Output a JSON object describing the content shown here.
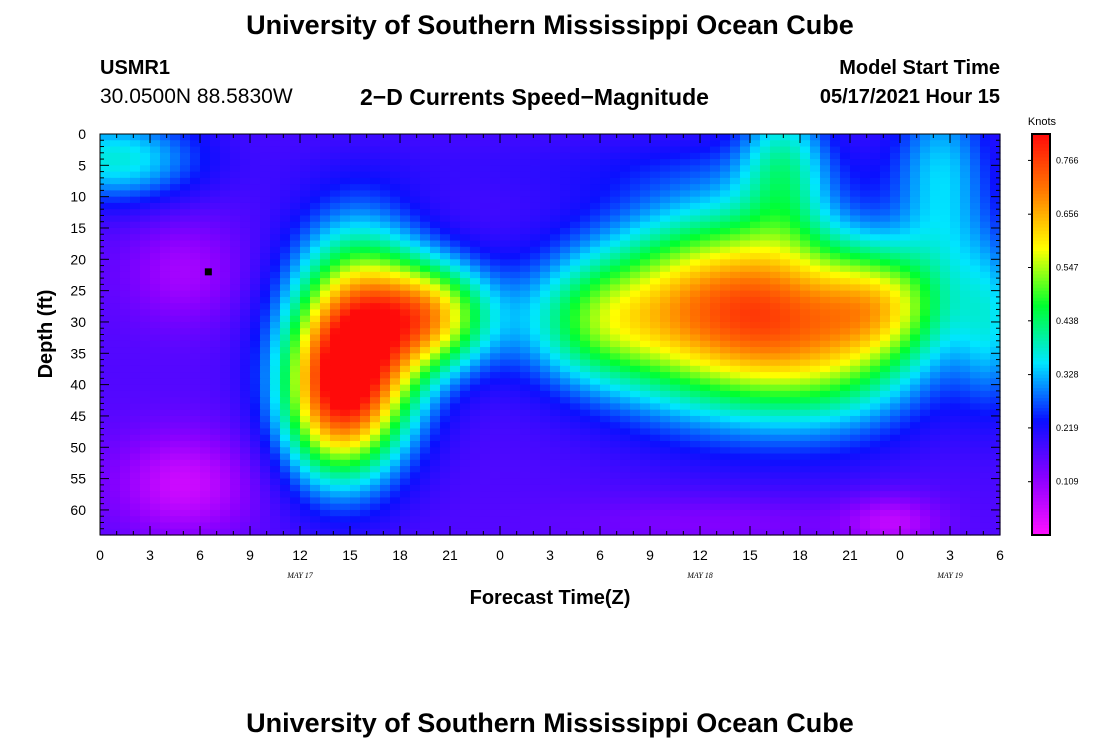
{
  "header": {
    "title": "University of Southern Mississippi Ocean Cube",
    "station_id": "USMR1",
    "coords": "30.0500N  88.5830W",
    "chart_title": "2−D Currents Speed−Magnitude",
    "model_label": "Model Start Time",
    "model_time": "05/17/2021 Hour 15"
  },
  "footer": {
    "title": "University of Southern Mississippi Ocean Cube"
  },
  "chart_data": {
    "type": "heatmap",
    "title": "2−D Currents Speed−Magnitude",
    "xlabel": "Forecast Time(Z)",
    "ylabel": "Depth (ft)",
    "x_range_hours": [
      0,
      54
    ],
    "y_range": [
      0,
      64
    ],
    "y_inverted": true,
    "x_tick_labels": [
      "0",
      "3",
      "6",
      "9",
      "12",
      "15",
      "18",
      "21",
      "0",
      "3",
      "6",
      "9",
      "12",
      "15",
      "18",
      "21",
      "0",
      "3",
      "6"
    ],
    "y_ticks": [
      0,
      5,
      10,
      15,
      20,
      25,
      30,
      35,
      40,
      45,
      50,
      55,
      60
    ],
    "date_labels": [
      {
        "label": "MAY 17",
        "x_hour": 12
      },
      {
        "label": "MAY 18",
        "x_hour": 36
      },
      {
        "label": "MAY 19",
        "x_hour": 51
      }
    ],
    "marker": {
      "x_hour": 6.5,
      "depth": 22
    },
    "colorbar": {
      "unit": "Knots",
      "ticks": [
        0.766,
        0.656,
        0.547,
        0.438,
        0.328,
        0.219,
        0.109
      ],
      "range": [
        0.0,
        0.82
      ],
      "colors": [
        "#ff10ff",
        "#8a00ff",
        "#0a10ff",
        "#00e6ff",
        "#00ff30",
        "#ffff00",
        "#ff7a00",
        "#ff0a0a"
      ]
    },
    "field_bumps": [
      {
        "x": 15.5,
        "y": 33,
        "sx": 2.8,
        "sy": 12,
        "a": 0.55
      },
      {
        "x": 20,
        "y": 29,
        "sx": 2.5,
        "sy": 6,
        "a": 0.38
      },
      {
        "x": 14,
        "y": 43,
        "sx": 2.3,
        "sy": 9,
        "a": 0.32
      },
      {
        "x": 29.5,
        "y": 30,
        "sx": 3.2,
        "sy": 7,
        "a": 0.2
      },
      {
        "x": 38,
        "y": 28,
        "sx": 5.5,
        "sy": 11,
        "a": 0.55
      },
      {
        "x": 47,
        "y": 27,
        "sx": 2.5,
        "sy": 6,
        "a": 0.22
      },
      {
        "x": 44.5,
        "y": 35,
        "sx": 4,
        "sy": 9,
        "a": 0.18
      },
      {
        "x": 1,
        "y": 4,
        "sx": 3.5,
        "sy": 5,
        "a": 0.2
      },
      {
        "x": 41,
        "y": 4,
        "sx": 1.8,
        "sy": 9,
        "a": 0.18
      },
      {
        "x": 50.5,
        "y": 8,
        "sx": 2,
        "sy": 14,
        "a": 0.16
      },
      {
        "x": 53.5,
        "y": 30,
        "sx": 1.5,
        "sy": 10,
        "a": 0.15
      },
      {
        "x": 33,
        "y": 5,
        "sx": 12,
        "sy": 4,
        "a": 0.03
      },
      {
        "x": 5,
        "y": 56,
        "sx": 3,
        "sy": 6,
        "a": -0.12
      },
      {
        "x": 5,
        "y": 22,
        "sx": 2.5,
        "sy": 6,
        "a": -0.08
      },
      {
        "x": 47.5,
        "y": 62,
        "sx": 2,
        "sy": 3,
        "a": -0.1
      },
      {
        "x": 37,
        "y": 62,
        "sx": 6,
        "sy": 3,
        "a": -0.05
      }
    ],
    "field_base": 0.17
  }
}
